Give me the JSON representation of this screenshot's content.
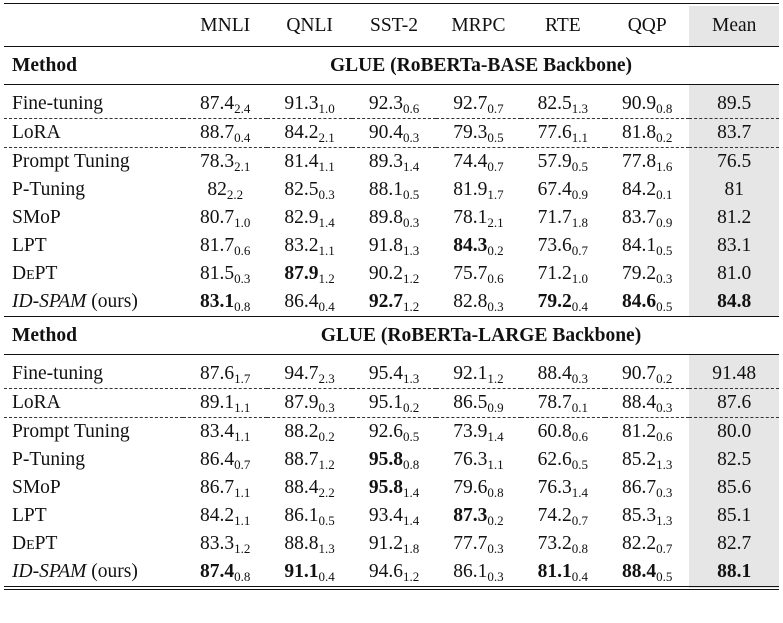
{
  "table": {
    "columns": [
      "MNLI",
      "QNLI",
      "SST-2",
      "MRPC",
      "RTE",
      "QQP",
      "Mean"
    ],
    "method_header": "Method",
    "sections": [
      {
        "title": "GLUE (RoBERTa-BASE Backbone)",
        "rows": [
          {
            "method": "Fine-tuning",
            "cells": [
              [
                "87.4",
                "2.4"
              ],
              [
                "91.3",
                "1.0"
              ],
              [
                "92.3",
                "0.6"
              ],
              [
                "92.7",
                "0.7"
              ],
              [
                "82.5",
                "1.3"
              ],
              [
                "90.9",
                "0.8"
              ]
            ],
            "bold": [],
            "mean": "89.5",
            "mean_bold": false
          },
          {
            "method": "LoRA",
            "cells": [
              [
                "88.7",
                "0.4"
              ],
              [
                "84.2",
                "2.1"
              ],
              [
                "90.4",
                "0.3"
              ],
              [
                "79.3",
                "0.5"
              ],
              [
                "77.6",
                "1.1"
              ],
              [
                "81.8",
                "0.2"
              ]
            ],
            "bold": [],
            "mean": "83.7",
            "mean_bold": false
          },
          {
            "method": "Prompt Tuning",
            "cells": [
              [
                "78.3",
                "2.1"
              ],
              [
                "81.4",
                "1.1"
              ],
              [
                "89.3",
                "1.4"
              ],
              [
                "74.4",
                "0.7"
              ],
              [
                "57.9",
                "0.5"
              ],
              [
                "77.8",
                "1.6"
              ]
            ],
            "bold": [],
            "mean": "76.5",
            "mean_bold": false
          },
          {
            "method": "P-Tuning",
            "cells": [
              [
                "82",
                "2.2"
              ],
              [
                "82.5",
                "0.3"
              ],
              [
                "88.1",
                "0.5"
              ],
              [
                "81.9",
                "1.7"
              ],
              [
                "67.4",
                "0.9"
              ],
              [
                "84.2",
                "0.1"
              ]
            ],
            "bold": [],
            "mean": "81",
            "mean_bold": false
          },
          {
            "method": "SMoP",
            "cells": [
              [
                "80.7",
                "1.0"
              ],
              [
                "82.9",
                "1.4"
              ],
              [
                "89.8",
                "0.3"
              ],
              [
                "78.1",
                "2.1"
              ],
              [
                "71.7",
                "1.8"
              ],
              [
                "83.7",
                "0.9"
              ]
            ],
            "bold": [],
            "mean": "81.2",
            "mean_bold": false
          },
          {
            "method": "LPT",
            "cells": [
              [
                "81.7",
                "0.6"
              ],
              [
                "83.2",
                "1.1"
              ],
              [
                "91.8",
                "1.3"
              ],
              [
                "84.3",
                "0.2"
              ],
              [
                "73.6",
                "0.7"
              ],
              [
                "84.1",
                "0.5"
              ]
            ],
            "bold": [
              3
            ],
            "mean": "83.1",
            "mean_bold": false
          },
          {
            "method": "DEPT",
            "cells": [
              [
                "81.5",
                "0.3"
              ],
              [
                "87.9",
                "1.2"
              ],
              [
                "90.2",
                "1.2"
              ],
              [
                "75.7",
                "0.6"
              ],
              [
                "71.2",
                "1.0"
              ],
              [
                "79.2",
                "0.3"
              ]
            ],
            "bold": [
              1
            ],
            "mean": "81.0",
            "mean_bold": false
          },
          {
            "method": "ID-SPAM",
            "method_suffix": "(ours)",
            "cells": [
              [
                "83.1",
                "0.8"
              ],
              [
                "86.4",
                "0.4"
              ],
              [
                "92.7",
                "1.2"
              ],
              [
                "82.8",
                "0.3"
              ],
              [
                "79.2",
                "0.4"
              ],
              [
                "84.6",
                "0.5"
              ]
            ],
            "bold": [
              0,
              2,
              4,
              5
            ],
            "mean": "84.8",
            "mean_bold": true
          }
        ]
      },
      {
        "title": "GLUE (RoBERTa-LARGE Backbone)",
        "rows": [
          {
            "method": "Fine-tuning",
            "cells": [
              [
                "87.6",
                "1.7"
              ],
              [
                "94.7",
                "2.3"
              ],
              [
                "95.4",
                "1.3"
              ],
              [
                "92.1",
                "1.2"
              ],
              [
                "88.4",
                "0.3"
              ],
              [
                "90.7",
                "0.2"
              ]
            ],
            "bold": [],
            "mean": "91.48",
            "mean_bold": false
          },
          {
            "method": "LoRA",
            "cells": [
              [
                "89.1",
                "1.1"
              ],
              [
                "87.9",
                "0.3"
              ],
              [
                "95.1",
                "0.2"
              ],
              [
                "86.5",
                "0.9"
              ],
              [
                "78.7",
                "0.1"
              ],
              [
                "88.4",
                "0.3"
              ]
            ],
            "bold": [],
            "mean": "87.6",
            "mean_bold": false
          },
          {
            "method": "Prompt Tuning",
            "cells": [
              [
                "83.4",
                "1.1"
              ],
              [
                "88.2",
                "0.2"
              ],
              [
                "92.6",
                "0.5"
              ],
              [
                "73.9",
                "1.4"
              ],
              [
                "60.8",
                "0.6"
              ],
              [
                "81.2",
                "0.6"
              ]
            ],
            "bold": [],
            "mean": "80.0",
            "mean_bold": false
          },
          {
            "method": "P-Tuning",
            "cells": [
              [
                "86.4",
                "0.7"
              ],
              [
                "88.7",
                "1.2"
              ],
              [
                "95.8",
                "0.8"
              ],
              [
                "76.3",
                "1.1"
              ],
              [
                "62.6",
                "0.5"
              ],
              [
                "85.2",
                "1.3"
              ]
            ],
            "bold": [
              2
            ],
            "mean": "82.5",
            "mean_bold": false
          },
          {
            "method": "SMoP",
            "cells": [
              [
                "86.7",
                "1.1"
              ],
              [
                "88.4",
                "2.2"
              ],
              [
                "95.8",
                "1.4"
              ],
              [
                "79.6",
                "0.8"
              ],
              [
                "76.3",
                "1.4"
              ],
              [
                "86.7",
                "0.3"
              ]
            ],
            "bold": [
              2
            ],
            "mean": "85.6",
            "mean_bold": false
          },
          {
            "method": "LPT",
            "cells": [
              [
                "84.2",
                "1.1"
              ],
              [
                "86.1",
                "0.5"
              ],
              [
                "93.4",
                "1.4"
              ],
              [
                "87.3",
                "0.2"
              ],
              [
                "74.2",
                "0.7"
              ],
              [
                "85.3",
                "1.3"
              ]
            ],
            "bold": [
              3
            ],
            "mean": "85.1",
            "mean_bold": false
          },
          {
            "method": "DEPT",
            "cells": [
              [
                "83.3",
                "1.2"
              ],
              [
                "88.8",
                "1.3"
              ],
              [
                "91.2",
                "1.8"
              ],
              [
                "77.7",
                "0.3"
              ],
              [
                "73.2",
                "0.8"
              ],
              [
                "82.2",
                "0.7"
              ]
            ],
            "bold": [],
            "mean": "82.7",
            "mean_bold": false
          },
          {
            "method": "ID-SPAM",
            "method_suffix": "(ours)",
            "cells": [
              [
                "87.4",
                "0.8"
              ],
              [
                "91.1",
                "0.4"
              ],
              [
                "94.6",
                "1.2"
              ],
              [
                "86.1",
                "0.3"
              ],
              [
                "81.1",
                "0.4"
              ],
              [
                "88.4",
                "0.5"
              ]
            ],
            "bold": [
              0,
              1,
              4,
              5
            ],
            "mean": "88.1",
            "mean_bold": true
          }
        ]
      }
    ]
  },
  "colors": {
    "mean_shade": "#e6e6e6",
    "rule": "#111111"
  }
}
